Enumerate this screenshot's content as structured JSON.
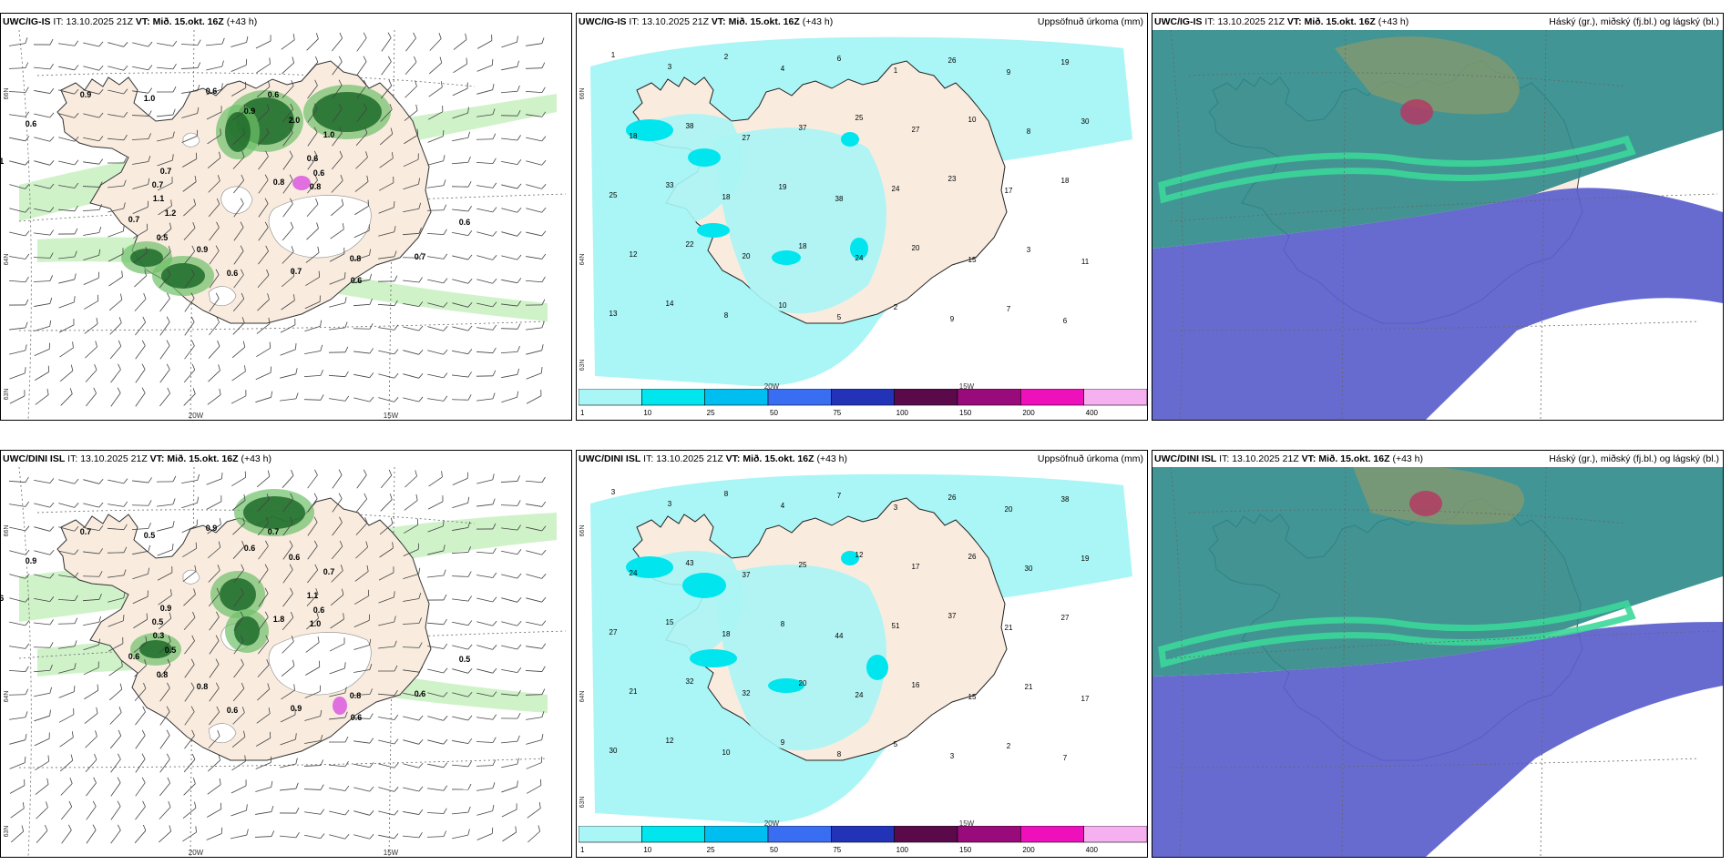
{
  "rows": [
    {
      "model": "UWC/IG-IS",
      "it_label": "IT:",
      "it_value": "13.10.2025 21Z",
      "vt_label": "VT:",
      "vt_value": "Mið. 15.okt. 16Z",
      "lead": "(+43 h)",
      "lon_labels": [
        "20W",
        "15W"
      ],
      "lat_labels": [
        "66N",
        "64N",
        "63N"
      ]
    },
    {
      "model": "UWC/DINI ISL",
      "it_label": "IT:",
      "it_value": "13.10.2025 21Z",
      "vt_label": "VT:",
      "vt_value": "Mið. 15.okt. 16Z",
      "lead": "(+43 h)",
      "lon_labels": [
        "20W",
        "15W"
      ],
      "lat_labels": [
        "66N",
        "64N",
        "63N"
      ]
    }
  ],
  "precip_title": "Uppsöfnuð úrkoma (mm)",
  "cloud_title": "Háský (gr.), miðský (fj.bl.) og lágský (bl.)",
  "colorbar": {
    "labels": [
      "1",
      "10",
      "25",
      "50",
      "75",
      "100",
      "150",
      "200",
      "400"
    ],
    "colors": [
      "#aaf5f5",
      "#00e5ee",
      "#00bff0",
      "#3a6ef2",
      "#2233b8",
      "#5a0a4a",
      "#990a7a",
      "#ee10bb",
      "#f5b0f0"
    ]
  },
  "wind_values": [
    [
      "0.8",
      "1.2",
      "0.9",
      "0.8",
      "1.1",
      "0.6",
      "0.9",
      "1.0",
      "0.6",
      "1.1",
      "2.0",
      "0.7",
      "0.6",
      "0.6",
      "0.5",
      "0.6",
      "0.7",
      "0.7",
      "1.0",
      "0.6",
      "0.9",
      "0.8",
      "0.7",
      "0.6",
      "0.6",
      "0.7"
    ],
    [
      "1.8",
      "0.5",
      "0.6",
      "0.8",
      "0.6",
      "1.1",
      "0.8",
      "0.5",
      "0.5",
      "0.3",
      "0.6",
      "0.9",
      "0.9",
      "0.6",
      "0.8",
      "0.9",
      "0.6",
      "0.5",
      "0.7",
      "0.6",
      "0.7",
      "1.0",
      "0.6",
      "0.7",
      "0.6",
      "0.9"
    ]
  ],
  "precip_values": [
    [
      "1",
      "3",
      "2",
      "4",
      "6",
      "1",
      "26",
      "9",
      "19",
      "18",
      "38",
      "27",
      "37",
      "25",
      "27",
      "10",
      "8",
      "30",
      "25",
      "33",
      "18",
      "19",
      "38",
      "24",
      "23",
      "17",
      "18",
      "12",
      "22",
      "20",
      "18",
      "24",
      "20",
      "15",
      "3",
      "11",
      "13",
      "14",
      "8",
      "10",
      "5",
      "2",
      "9",
      "7",
      "6"
    ],
    [
      "3",
      "3",
      "8",
      "4",
      "7",
      "3",
      "26",
      "20",
      "38",
      "24",
      "43",
      "37",
      "25",
      "12",
      "17",
      "26",
      "30",
      "19",
      "27",
      "15",
      "18",
      "8",
      "44",
      "51",
      "37",
      "21",
      "27",
      "21",
      "32",
      "32",
      "20",
      "24",
      "16",
      "15",
      "21",
      "17",
      "30",
      "12",
      "10",
      "9",
      "8",
      "5",
      "3",
      "2",
      "7"
    ]
  ],
  "colors": {
    "land": "#f9ecdf",
    "precip_light": "#aaf5f5",
    "precip_mid": "#00e5ee",
    "wind_green_light": "#c8f0c0",
    "wind_green": "#6fc06a",
    "wind_green_dark": "#1d6b2a",
    "cloud_high": "#5a5ecc",
    "cloud_mid": "#2e8a8a",
    "cloud_low": "#3cd79a"
  }
}
